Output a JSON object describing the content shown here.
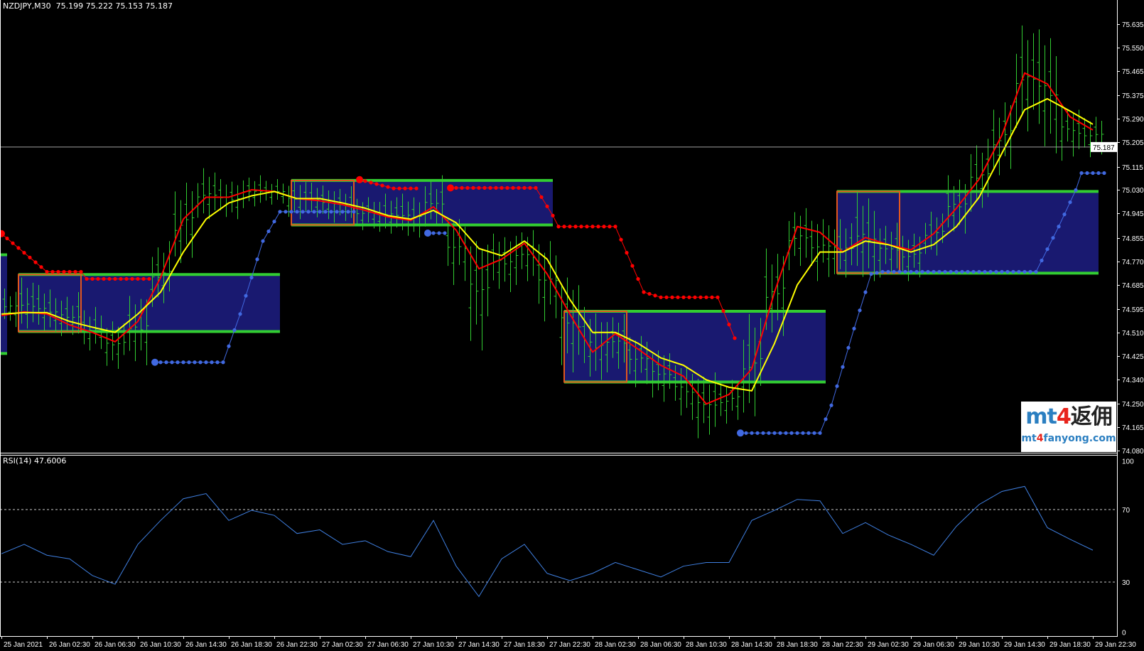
{
  "header": {
    "symbol": "NZDJPY,M30",
    "ohlc": "75.199 75.222 75.153 75.187"
  },
  "rsi_panel": {
    "label": "RSI(14) 47.6006"
  },
  "logo": {
    "main_latin": "mt",
    "main_digit": "4",
    "main_cjk": "返佣",
    "url_a": "mt",
    "url_digit": "4",
    "url_b": "fanyong.com"
  },
  "colors": {
    "background": "#000000",
    "bars": "#32cd32",
    "ma_fast": "#ff0000",
    "ma_slow": "#ffff00",
    "box_fill": "#191970",
    "box_line": "#32cd32",
    "box_open": "#e2571e",
    "sar_down": "#ff0000",
    "sar_up": "#4169e1",
    "rsi": "#3f7fe0",
    "current_price_line": "#a0a0a0"
  },
  "chart_data": [
    {
      "type": "candlestick",
      "symbol": "NZDJPY,M30",
      "ylim": [
        74.08,
        75.635
      ],
      "current_price": 75.187,
      "current_price_label": "75.187",
      "y_ticks": [
        "75.635",
        "75.550",
        "75.465",
        "75.375",
        "75.290",
        "75.205",
        "75.115",
        "75.030",
        "74.945",
        "74.855",
        "74.770",
        "74.685",
        "74.595",
        "74.510",
        "74.425",
        "74.340",
        "74.250",
        "74.165",
        "74.080"
      ],
      "x_tick_labels": [
        "25 Jan 2021",
        "26 Jan 02:30",
        "26 Jan 06:30",
        "26 Jan 10:30",
        "26 Jan 14:30",
        "26 Jan 18:30",
        "26 Jan 22:30",
        "27 Jan 02:30",
        "27 Jan 06:30",
        "27 Jan 10:30",
        "27 Jan 14:30",
        "27 Jan 18:30",
        "27 Jan 22:30",
        "28 Jan 02:30",
        "28 Jan 06:30",
        "28 Jan 10:30",
        "28 Jan 14:30",
        "28 Jan 18:30",
        "28 Jan 22:30",
        "29 Jan 02:30",
        "29 Jan 06:30",
        "29 Jan 10:30",
        "29 Jan 14:30",
        "29 Jan 18:30",
        "29 Jan 22:30"
      ],
      "x": [
        "2021-01-25 22:30",
        "2021-01-26 00:30",
        "2021-01-26 02:30",
        "2021-01-26 04:30",
        "2021-01-26 06:30",
        "2021-01-26 08:30",
        "2021-01-26 10:30",
        "2021-01-26 12:30",
        "2021-01-26 14:30",
        "2021-01-26 16:30",
        "2021-01-26 18:30",
        "2021-01-26 20:30",
        "2021-01-26 22:30",
        "2021-01-27 00:30",
        "2021-01-27 02:30",
        "2021-01-27 04:30",
        "2021-01-27 06:30",
        "2021-01-27 08:30",
        "2021-01-27 10:30",
        "2021-01-27 12:30",
        "2021-01-27 14:30",
        "2021-01-27 16:30",
        "2021-01-27 18:30",
        "2021-01-27 20:30",
        "2021-01-27 22:30",
        "2021-01-28 00:30",
        "2021-01-28 02:30",
        "2021-01-28 04:30",
        "2021-01-28 06:30",
        "2021-01-28 08:30",
        "2021-01-28 10:30",
        "2021-01-28 12:30",
        "2021-01-28 14:30",
        "2021-01-28 16:30",
        "2021-01-28 18:30",
        "2021-01-28 20:30",
        "2021-01-28 22:30",
        "2021-01-29 00:30",
        "2021-01-29 02:30",
        "2021-01-29 04:30",
        "2021-01-29 06:30",
        "2021-01-29 08:30",
        "2021-01-29 10:30",
        "2021-01-29 12:30",
        "2021-01-29 14:30",
        "2021-01-29 16:30",
        "2021-01-29 18:30",
        "2021-01-29 20:30",
        "2021-01-29 22:30"
      ],
      "high": [
        74.671,
        74.711,
        74.684,
        74.658,
        74.604,
        74.551,
        74.644,
        74.844,
        75.057,
        75.11,
        75.07,
        75.084,
        75.07,
        75.07,
        75.057,
        75.044,
        75.004,
        75.017,
        75.017,
        75.084,
        74.924,
        74.844,
        74.871,
        74.884,
        74.844,
        74.711,
        74.604,
        74.578,
        74.498,
        74.445,
        74.391,
        74.365,
        74.338,
        74.578,
        74.817,
        74.964,
        74.924,
        74.924,
        75.025,
        74.911,
        74.871,
        74.951,
        75.084,
        75.217,
        75.35,
        75.63,
        75.616,
        75.323,
        75.297
      ],
      "low": [
        74.551,
        74.525,
        74.511,
        74.498,
        74.445,
        74.378,
        74.391,
        74.604,
        74.764,
        74.924,
        74.924,
        74.964,
        74.977,
        74.924,
        74.924,
        74.911,
        74.884,
        74.871,
        74.857,
        74.897,
        74.684,
        74.445,
        74.658,
        74.684,
        74.551,
        74.365,
        74.338,
        74.365,
        74.311,
        74.258,
        74.192,
        74.125,
        74.178,
        74.205,
        74.498,
        74.738,
        74.698,
        74.711,
        74.698,
        74.711,
        74.698,
        74.791,
        74.871,
        74.951,
        75.084,
        75.244,
        75.164,
        75.137,
        75.15
      ],
      "series": [
        {
          "color": "#ff0000",
          "values": [
            74.572,
            74.586,
            74.578,
            74.538,
            74.511,
            74.477,
            74.551,
            74.711,
            74.924,
            75.004,
            75.004,
            75.031,
            75.025,
            74.999,
            74.991,
            74.977,
            74.956,
            74.932,
            74.919,
            74.969,
            74.884,
            74.743,
            74.778,
            74.836,
            74.724,
            74.578,
            74.439,
            74.506,
            74.45,
            74.391,
            74.351,
            74.25,
            74.285,
            74.378,
            74.658,
            74.897,
            74.876,
            74.804,
            74.857,
            74.831,
            74.812,
            74.871,
            74.964,
            75.07,
            75.23,
            75.457,
            75.417,
            75.297,
            75.249
          ]
        },
        {
          "color": "#ffff00",
          "values": [
            74.578,
            74.583,
            74.583,
            74.551,
            74.53,
            74.511,
            74.578,
            74.658,
            74.804,
            74.924,
            74.983,
            75.009,
            75.025,
            74.999,
            74.999,
            74.983,
            74.964,
            74.937,
            74.924,
            74.956,
            74.911,
            74.817,
            74.791,
            74.844,
            74.778,
            74.631,
            74.511,
            74.511,
            74.471,
            74.418,
            74.391,
            74.338,
            74.311,
            74.298,
            74.471,
            74.684,
            74.804,
            74.804,
            74.844,
            74.831,
            74.804,
            74.831,
            74.897,
            75.004,
            75.164,
            75.323,
            75.363,
            75.318,
            75.27
          ]
        }
      ],
      "boxes": [
        {
          "start": "2021-01-25 00:00",
          "end": "2021-01-25 23:00",
          "open_end": "2021-01-25 05:30",
          "top": 74.794,
          "bottom": 74.434
        },
        {
          "start": "2021-01-26 00:00",
          "end": "2021-01-26 23:00",
          "open_end": "2021-01-26 05:30",
          "top": 74.722,
          "bottom": 74.514
        },
        {
          "start": "2021-01-27 00:00",
          "end": "2021-01-27 23:00",
          "open_end": "2021-01-27 05:30",
          "top": 75.065,
          "bottom": 74.903
        },
        {
          "start": "2021-01-28 00:00",
          "end": "2021-01-28 23:00",
          "open_end": "2021-01-28 05:30",
          "top": 74.588,
          "bottom": 74.33
        },
        {
          "start": "2021-01-29 00:00",
          "end": "2021-01-29 23:00",
          "open_end": "2021-01-29 05:30",
          "top": 75.025,
          "bottom": 74.727
        }
      ],
      "psar": [
        {
          "side": "down",
          "points": [
            [
              "2021-01-25 22:30",
              74.871
            ],
            [
              "2021-01-26 02:30",
              74.732
            ],
            [
              "2021-01-26 05:30",
              74.732
            ],
            [
              "2021-01-26 06:00",
              74.706
            ],
            [
              "2021-01-26 11:30",
              74.706
            ]
          ]
        },
        {
          "side": "down",
          "points": [
            [
              "2021-01-27 06:00",
              75.068
            ],
            [
              "2021-01-27 09:00",
              75.036
            ],
            [
              "2021-01-27 11:00",
              75.036
            ]
          ]
        },
        {
          "side": "down",
          "points": [
            [
              "2021-01-27 14:00",
              75.038
            ],
            [
              "2021-01-27 21:30",
              75.038
            ],
            [
              "2021-01-27 23:00",
              74.937
            ],
            [
              "2021-01-27 23:30",
              74.897
            ],
            [
              "2021-01-28 04:30",
              74.897
            ],
            [
              "2021-01-28 07:00",
              74.658
            ],
            [
              "2021-01-28 08:30",
              74.639
            ],
            [
              "2021-01-28 13:30",
              74.639
            ],
            [
              "2021-01-28 15:00",
              74.49
            ]
          ]
        },
        {
          "side": "up",
          "points": [
            [
              "2021-01-26 12:00",
              74.402
            ],
            [
              "2021-01-26 18:00",
              74.402
            ],
            [
              "2021-01-26 19:30",
              74.578
            ],
            [
              "2021-01-26 21:30",
              74.844
            ],
            [
              "2021-01-26 23:00",
              74.951
            ],
            [
              "2021-01-27 05:30",
              74.951
            ]
          ]
        },
        {
          "side": "up",
          "points": [
            [
              "2021-01-27 12:00",
              74.873
            ],
            [
              "2021-01-27 13:30",
              74.873
            ]
          ]
        },
        {
          "side": "up",
          "points": [
            [
              "2021-01-28 15:30",
              74.144
            ],
            [
              "2021-01-28 22:30",
              74.144
            ],
            [
              "2021-01-28 23:30",
              74.245
            ],
            [
              "2021-01-29 01:30",
              74.525
            ],
            [
              "2021-01-29 03:00",
              74.724
            ],
            [
              "2021-01-29 04:00",
              74.732
            ],
            [
              "2021-01-29 17:30",
              74.732
            ],
            [
              "2021-01-29 19:30",
              74.897
            ],
            [
              "2021-01-29 21:00",
              75.03
            ],
            [
              "2021-01-29 21:30",
              75.092
            ],
            [
              "2021-01-29 23:30",
              75.092
            ]
          ]
        }
      ]
    },
    {
      "type": "line",
      "title": "RSI(14) 47.6006",
      "ylim": [
        0,
        100
      ],
      "levels": [
        30,
        70
      ],
      "y_ticks": [
        "100",
        "70",
        "30",
        "0"
      ],
      "color": "#3f7fe0",
      "values": [
        45.6,
        50.8,
        44.8,
        42.8,
        33.6,
        28.8,
        50.8,
        64.0,
        76.0,
        78.8,
        64.0,
        69.6,
        66.8,
        56.8,
        58.8,
        50.8,
        52.8,
        46.8,
        44.0,
        64.0,
        38.8,
        22.0,
        42.8,
        50.8,
        34.8,
        30.8,
        34.8,
        40.8,
        36.8,
        32.8,
        38.8,
        40.8,
        40.8,
        64.0,
        69.6,
        75.6,
        74.8,
        56.8,
        62.8,
        56.0,
        50.8,
        44.8,
        60.8,
        72.8,
        80.0,
        82.8,
        60.0,
        53.6,
        47.6
      ]
    }
  ]
}
